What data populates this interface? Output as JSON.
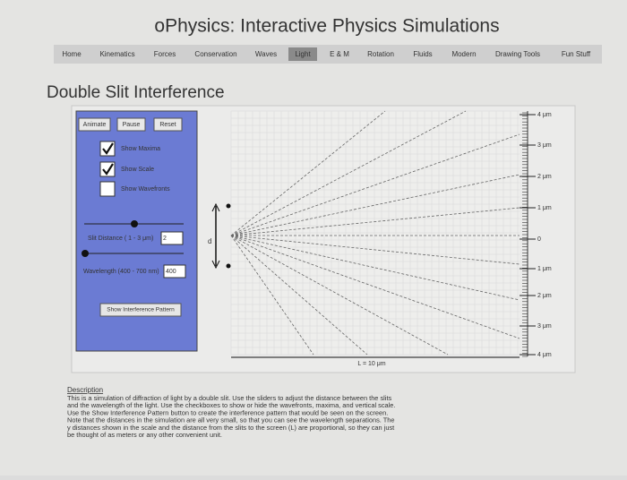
{
  "header": {
    "title": "oPhysics: Interactive Physics Simulations"
  },
  "nav": {
    "items": [
      "Home",
      "Kinematics",
      "Forces",
      "Conservation",
      "Waves",
      "Light",
      "E & M",
      "Rotation",
      "Fluids",
      "Modern",
      "Drawing Tools",
      "Fun Stuff"
    ],
    "active": "Light"
  },
  "page": {
    "title": "Double Slit Interference"
  },
  "controls": {
    "buttons": [
      "Animate",
      "Pause",
      "Reset"
    ],
    "checkboxes": [
      {
        "label": "Show Maxima",
        "checked": true
      },
      {
        "label": "Show Scale",
        "checked": true
      },
      {
        "label": "Show Wavefronts",
        "checked": false
      }
    ],
    "slit_label": "Slit Distance ( 1 - 3 μm)",
    "slit_value": "2",
    "wavelength_label": "Wavelength (400 - 700 nm)",
    "wavelength_value": "400",
    "pattern_button": "Show Interference Pattern"
  },
  "simulation": {
    "d_label": "d",
    "L_label": "L = 10 μm",
    "scale_labels": [
      "4 μm",
      "3 μm",
      "2 μm",
      "1 μm",
      "0",
      "1 μm",
      "2 μm",
      "3 μm",
      "4 μm"
    ]
  },
  "description": {
    "heading": "Description",
    "lines": [
      "This is a simulation of diffraction of light by a double slit. Use the sliders to adjust the distance between the slits",
      "and the wavelength of the light. Use the checkboxes to show or hide the wavefronts, maxima, and vertical scale.",
      "Use the Show Interference Pattern button to create the interference pattern that would be seen on the screen.",
      "Note that the distances in the simulation are all very small, so that you can see the wavelength separations. The",
      "y distances shown in the scale and the distance from the slits to the screen (L) are proportional, so they can just",
      "be thought of as meters or any other convenient unit."
    ]
  }
}
